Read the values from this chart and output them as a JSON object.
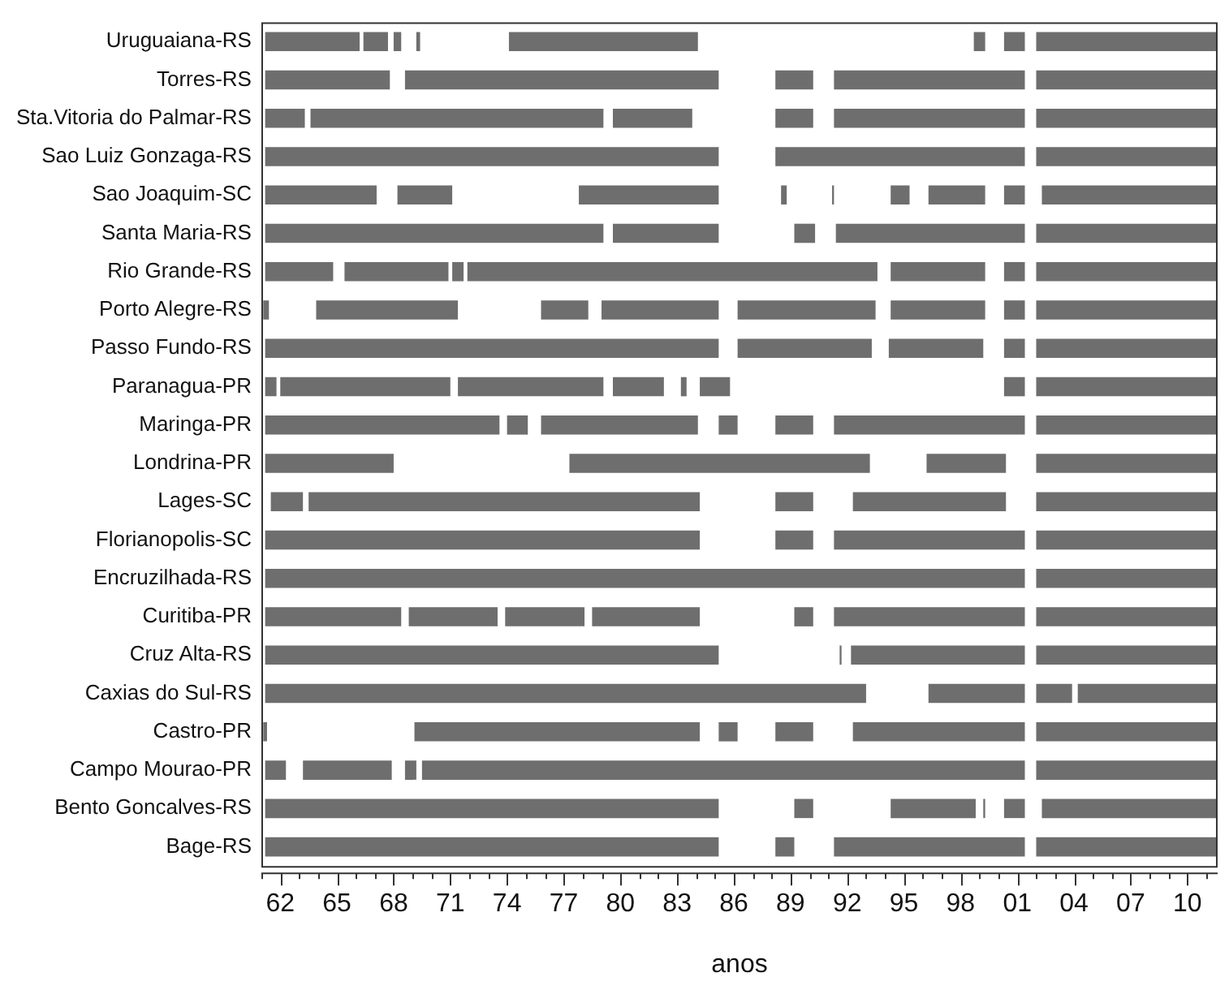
{
  "chart_data": {
    "type": "bar",
    "orientation": "horizontal",
    "xlabel": "anos",
    "grid": false,
    "legend": false,
    "categories": [
      "Uruguaiana-RS",
      "Torres-RS",
      "Sta.Vitoria do Palmar-RS",
      "Sao Luiz Gonzaga-RS",
      "Sao Joaquim-SC",
      "Santa Maria-RS",
      "Rio Grande-RS",
      "Porto Alegre-RS",
      "Passo Fundo-RS",
      "Paranagua-PR",
      "Maringa-PR",
      "Londrina-PR",
      "Lages-SC",
      "Florianopolis-SC",
      "Encruzilhada-RS",
      "Curitiba-PR",
      "Cruz Alta-RS",
      "Caxias do Sul-RS",
      "Castro-PR",
      "Campo Mourao-PR",
      "Bento Goncalves-RS",
      "Bage-RS"
    ],
    "xlim": [
      1961,
      2011.6
    ],
    "xticks": [
      {
        "value": 1961,
        "label": null
      },
      {
        "value": 1962,
        "label": "62"
      },
      {
        "value": 1963,
        "label": null
      },
      {
        "value": 1964,
        "label": null
      },
      {
        "value": 1965,
        "label": "65"
      },
      {
        "value": 1966,
        "label": null
      },
      {
        "value": 1967,
        "label": null
      },
      {
        "value": 1968,
        "label": "68"
      },
      {
        "value": 1969,
        "label": null
      },
      {
        "value": 1970,
        "label": null
      },
      {
        "value": 1971,
        "label": "71"
      },
      {
        "value": 1972,
        "label": null
      },
      {
        "value": 1973,
        "label": null
      },
      {
        "value": 1974,
        "label": "74"
      },
      {
        "value": 1975,
        "label": null
      },
      {
        "value": 1976,
        "label": null
      },
      {
        "value": 1977,
        "label": "77"
      },
      {
        "value": 1978,
        "label": null
      },
      {
        "value": 1979,
        "label": null
      },
      {
        "value": 1980,
        "label": "80"
      },
      {
        "value": 1981,
        "label": null
      },
      {
        "value": 1982,
        "label": null
      },
      {
        "value": 1983,
        "label": "83"
      },
      {
        "value": 1984,
        "label": null
      },
      {
        "value": 1985,
        "label": null
      },
      {
        "value": 1986,
        "label": "86"
      },
      {
        "value": 1987,
        "label": null
      },
      {
        "value": 1988,
        "label": null
      },
      {
        "value": 1989,
        "label": "89"
      },
      {
        "value": 1990,
        "label": null
      },
      {
        "value": 1991,
        "label": null
      },
      {
        "value": 1992,
        "label": "92"
      },
      {
        "value": 1993,
        "label": null
      },
      {
        "value": 1994,
        "label": null
      },
      {
        "value": 1995,
        "label": "95"
      },
      {
        "value": 1996,
        "label": null
      },
      {
        "value": 1997,
        "label": null
      },
      {
        "value": 1998,
        "label": "98"
      },
      {
        "value": 1999,
        "label": null
      },
      {
        "value": 2000,
        "label": null
      },
      {
        "value": 2001,
        "label": "01"
      },
      {
        "value": 2002,
        "label": null
      },
      {
        "value": 2003,
        "label": null
      },
      {
        "value": 2004,
        "label": "04"
      },
      {
        "value": 2005,
        "label": null
      },
      {
        "value": 2006,
        "label": null
      },
      {
        "value": 2007,
        "label": "07"
      },
      {
        "value": 2008,
        "label": null
      },
      {
        "value": 2009,
        "label": null
      },
      {
        "value": 2010,
        "label": "10"
      },
      {
        "value": 2011,
        "label": null
      }
    ],
    "series": [
      {
        "color": "#6e6e6e",
        "base": [
          1961.2,
          1961.2,
          1961.2,
          1961.2,
          1961.2,
          1961.2,
          1961.2,
          1961.1,
          1961.2,
          1961.2,
          1961.2,
          1961.2,
          1961.5,
          1961.2,
          1961.2,
          1961.2,
          1961.2,
          1961.2,
          1961.1,
          1961.2,
          1961.2,
          1961.2
        ],
        "values": [
          5.0,
          6.6,
          2.1,
          24.0,
          5.9,
          17.9,
          3.6,
          0.3,
          24.0,
          0.6,
          12.4,
          6.8,
          1.7,
          23.0,
          40.2,
          7.2,
          24.0,
          31.8,
          0.2,
          1.1,
          24.0,
          24.0
        ]
      },
      {
        "color": "#6e6e6e",
        "base": [
          1966.4,
          1968.6,
          1963.6,
          1988.2,
          1968.2,
          1979.6,
          1965.4,
          1963.9,
          1986.2,
          1962.0,
          1974.0,
          1977.3,
          1963.5,
          1988.2,
          2002.0,
          1968.8,
          1991.6,
          1996.3,
          1969.1,
          1963.2,
          1989.2,
          1988.2
        ],
        "values": [
          1.3,
          16.6,
          15.5,
          13.2,
          2.9,
          5.6,
          5.5,
          7.5,
          7.1,
          9.0,
          1.1,
          15.9,
          20.7,
          2.0,
          9.6,
          4.7,
          0.1,
          5.1,
          15.1,
          4.7,
          1.0,
          1.0
        ]
      },
      {
        "color": "#6e6e6e",
        "base": [
          1968.0,
          1988.2,
          1979.6,
          2002.0,
          1977.8,
          1989.2,
          1971.1,
          1975.8,
          1994.2,
          1971.4,
          1975.8,
          1996.2,
          1988.2,
          1991.3,
          null,
          1973.9,
          1992.2,
          2002.0,
          1985.2,
          1968.6,
          1994.3,
          1991.3
        ],
        "values": [
          0.4,
          2.0,
          4.2,
          9.6,
          7.4,
          1.1,
          0.6,
          2.5,
          5.0,
          7.7,
          8.3,
          4.2,
          2.0,
          10.1,
          null,
          4.2,
          9.2,
          1.9,
          1.0,
          0.6,
          4.5,
          10.1
        ]
      },
      {
        "color": "#6e6e6e",
        "base": [
          1969.2,
          1991.3,
          1988.2,
          null,
          1988.5,
          1991.4,
          1971.9,
          1979.0,
          2000.3,
          1979.6,
          1985.2,
          2002.0,
          1992.3,
          2002.0,
          null,
          1978.5,
          2002.0,
          2004.2,
          1988.2,
          1969.5,
          1999.2,
          2002.0
        ],
        "values": [
          0.2,
          10.1,
          2.0,
          null,
          0.3,
          10.0,
          21.7,
          6.2,
          1.1,
          2.7,
          1.0,
          9.6,
          8.1,
          9.6,
          null,
          5.7,
          9.6,
          7.4,
          2.0,
          31.9,
          0.1,
          9.6
        ]
      },
      {
        "color": "#6e6e6e",
        "base": [
          1974.1,
          2002.0,
          1991.3,
          null,
          1991.2,
          2002.0,
          1994.3,
          1986.2,
          2002.0,
          1983.2,
          1988.2,
          null,
          2002.0,
          null,
          null,
          1989.2,
          null,
          null,
          1992.3,
          2002.0,
          2000.3,
          null
        ],
        "values": [
          10.0,
          9.6,
          10.1,
          null,
          0.1,
          9.6,
          5.0,
          7.3,
          9.6,
          0.3,
          2.0,
          null,
          9.6,
          null,
          null,
          1.0,
          null,
          null,
          9.1,
          9.6,
          1.1,
          null
        ]
      },
      {
        "color": "#6e6e6e",
        "base": [
          1998.7,
          null,
          2002.0,
          null,
          1994.3,
          null,
          2000.3,
          1994.3,
          null,
          1984.2,
          1991.3,
          null,
          null,
          null,
          null,
          1991.3,
          null,
          null,
          2002.0,
          null,
          2002.3,
          null
        ],
        "values": [
          0.6,
          null,
          9.6,
          null,
          1.0,
          null,
          1.1,
          5.0,
          null,
          1.6,
          10.1,
          null,
          null,
          null,
          null,
          10.1,
          null,
          null,
          9.6,
          null,
          9.3,
          null
        ]
      },
      {
        "color": "#6e6e6e",
        "base": [
          2000.3,
          null,
          null,
          null,
          1996.3,
          null,
          2002.0,
          2000.3,
          null,
          2000.3,
          2002.0,
          null,
          null,
          null,
          null,
          2002.0,
          null,
          null,
          null,
          null,
          null,
          null
        ],
        "values": [
          1.1,
          null,
          null,
          null,
          3.0,
          null,
          9.6,
          1.1,
          null,
          1.1,
          9.6,
          null,
          null,
          null,
          null,
          9.6,
          null,
          null,
          null,
          null,
          null,
          null
        ]
      },
      {
        "color": "#6e6e6e",
        "base": [
          2002.0,
          null,
          null,
          null,
          2000.3,
          null,
          null,
          2002.0,
          null,
          2002.0,
          null,
          null,
          null,
          null,
          null,
          null,
          null,
          null,
          null,
          null,
          null,
          null
        ],
        "values": [
          9.6,
          null,
          null,
          null,
          1.1,
          null,
          null,
          9.6,
          null,
          9.6,
          null,
          null,
          null,
          null,
          null,
          null,
          null,
          null,
          null,
          null,
          null,
          null
        ]
      },
      {
        "color": "#6e6e6e",
        "base": [
          null,
          null,
          null,
          null,
          2002.3,
          null,
          null,
          null,
          null,
          null,
          null,
          null,
          null,
          null,
          null,
          null,
          null,
          null,
          null,
          null,
          null,
          null
        ],
        "values": [
          null,
          null,
          null,
          null,
          9.3,
          null,
          null,
          null,
          null,
          null,
          null,
          null,
          null,
          null,
          null,
          null,
          null,
          null,
          null,
          null,
          null,
          null
        ]
      }
    ]
  }
}
